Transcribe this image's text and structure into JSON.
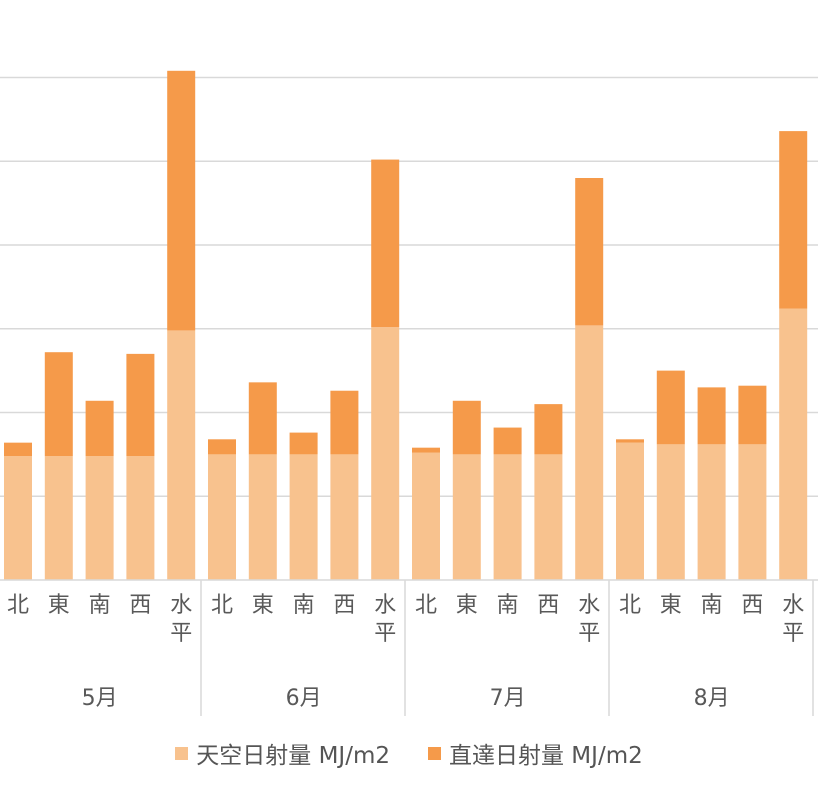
{
  "chart_data": {
    "type": "bar",
    "stacked": true,
    "grid": true,
    "ylim": [
      0,
      30
    ],
    "months": [
      "5月",
      "6月",
      "7月",
      "8月"
    ],
    "directions": [
      "北",
      "東",
      "南",
      "西",
      "水平"
    ],
    "series": [
      {
        "name": "天空日射量 MJ/m2",
        "color": "#F8C28E",
        "values": [
          [
            7.4,
            7.4,
            7.4,
            7.4,
            14.9
          ],
          [
            7.5,
            7.5,
            7.5,
            7.5,
            15.1
          ],
          [
            7.6,
            7.5,
            7.5,
            7.5,
            15.2
          ],
          [
            8.2,
            8.1,
            8.1,
            8.1,
            16.2
          ]
        ]
      },
      {
        "name": "直達日射量 MJ/m2",
        "color": "#F59A4A",
        "values": [
          [
            0.8,
            6.2,
            3.3,
            6.1,
            15.5
          ],
          [
            0.9,
            4.3,
            1.3,
            3.8,
            10.0
          ],
          [
            0.3,
            3.2,
            1.6,
            3.0,
            8.8
          ],
          [
            0.2,
            4.4,
            3.4,
            3.5,
            10.6
          ]
        ]
      }
    ]
  }
}
